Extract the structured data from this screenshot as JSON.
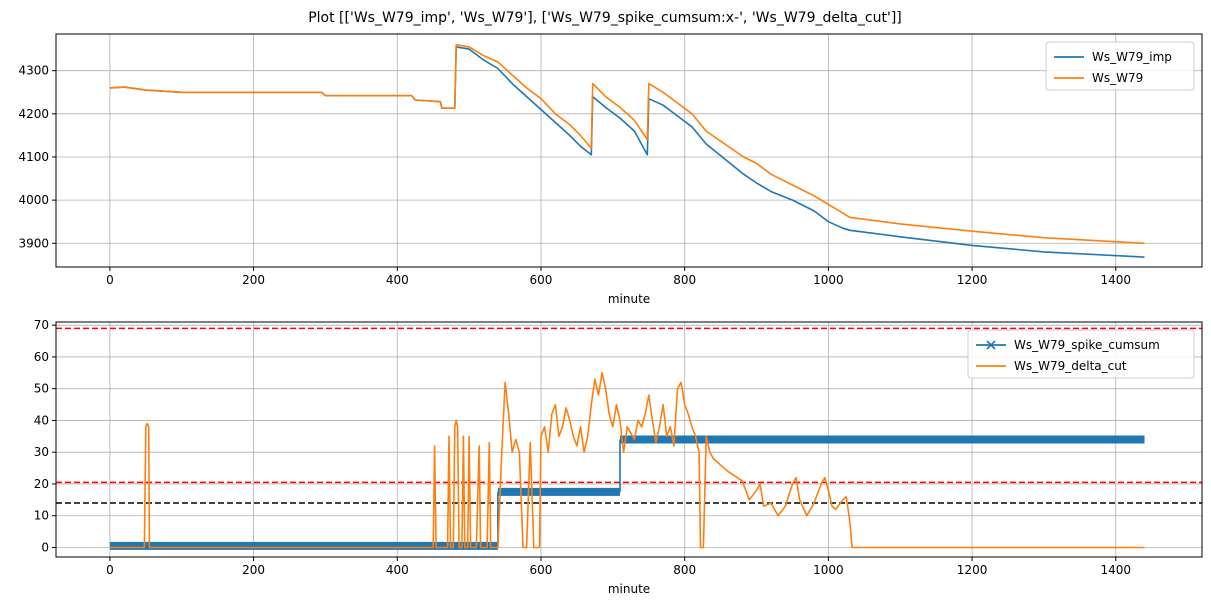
{
  "figure_title": "Plot [['Ws_W79_imp', 'Ws_W79'], ['Ws_W79_spike_cumsum:x-', 'Ws_W79_delta_cut']]",
  "chart_data": [
    {
      "type": "line",
      "title": "",
      "xlabel": "minute",
      "ylabel": "",
      "xlim": [
        -75,
        1520
      ],
      "ylim": [
        3845,
        4385
      ],
      "xticks": [
        0,
        200,
        400,
        600,
        800,
        1000,
        1200,
        1400
      ],
      "yticks": [
        3900,
        4000,
        4100,
        4200,
        4300
      ],
      "grid": true,
      "legend": "top-right",
      "series": [
        {
          "name": "Ws_W79_imp",
          "color": "#1f77b4",
          "points": [
            [
              0,
              4260
            ],
            [
              20,
              4262
            ],
            [
              50,
              4255
            ],
            [
              100,
              4250
            ],
            [
              200,
              4250
            ],
            [
              295,
              4250
            ],
            [
              300,
              4242
            ],
            [
              420,
              4242
            ],
            [
              425,
              4232
            ],
            [
              460,
              4228
            ],
            [
              462,
              4213
            ],
            [
              480,
              4213
            ],
            [
              482,
              4355
            ],
            [
              500,
              4350
            ],
            [
              520,
              4325
            ],
            [
              540,
              4305
            ],
            [
              560,
              4270
            ],
            [
              580,
              4240
            ],
            [
              600,
              4210
            ],
            [
              620,
              4180
            ],
            [
              640,
              4150
            ],
            [
              655,
              4125
            ],
            [
              670,
              4105
            ],
            [
              672,
              4240
            ],
            [
              690,
              4215
            ],
            [
              710,
              4190
            ],
            [
              730,
              4160
            ],
            [
              748,
              4105
            ],
            [
              750,
              4235
            ],
            [
              770,
              4220
            ],
            [
              790,
              4195
            ],
            [
              810,
              4170
            ],
            [
              830,
              4130
            ],
            [
              882,
              4060
            ],
            [
              900,
              4040
            ],
            [
              920,
              4020
            ],
            [
              950,
              4000
            ],
            [
              980,
              3975
            ],
            [
              1000,
              3950
            ],
            [
              1020,
              3935
            ],
            [
              1030,
              3930
            ],
            [
              1100,
              3915
            ],
            [
              1200,
              3895
            ],
            [
              1300,
              3880
            ],
            [
              1440,
              3868
            ]
          ]
        },
        {
          "name": "Ws_W79",
          "color": "#ff7f0e",
          "points": [
            [
              0,
              4260
            ],
            [
              20,
              4262
            ],
            [
              50,
              4255
            ],
            [
              100,
              4250
            ],
            [
              200,
              4250
            ],
            [
              295,
              4250
            ],
            [
              300,
              4242
            ],
            [
              420,
              4242
            ],
            [
              425,
              4232
            ],
            [
              460,
              4228
            ],
            [
              462,
              4213
            ],
            [
              480,
              4213
            ],
            [
              482,
              4360
            ],
            [
              500,
              4355
            ],
            [
              520,
              4335
            ],
            [
              540,
              4320
            ],
            [
              560,
              4290
            ],
            [
              580,
              4260
            ],
            [
              600,
              4235
            ],
            [
              620,
              4200
            ],
            [
              640,
              4175
            ],
            [
              655,
              4150
            ],
            [
              670,
              4120
            ],
            [
              672,
              4270
            ],
            [
              690,
              4240
            ],
            [
              710,
              4215
            ],
            [
              730,
              4185
            ],
            [
              748,
              4140
            ],
            [
              750,
              4270
            ],
            [
              770,
              4250
            ],
            [
              790,
              4225
            ],
            [
              810,
              4200
            ],
            [
              830,
              4160
            ],
            [
              882,
              4100
            ],
            [
              900,
              4085
            ],
            [
              920,
              4060
            ],
            [
              950,
              4035
            ],
            [
              980,
              4010
            ],
            [
              1000,
              3990
            ],
            [
              1020,
              3970
            ],
            [
              1030,
              3960
            ],
            [
              1100,
              3945
            ],
            [
              1200,
              3928
            ],
            [
              1300,
              3913
            ],
            [
              1440,
              3900
            ]
          ]
        }
      ]
    },
    {
      "type": "line",
      "title": "",
      "xlabel": "minute",
      "ylabel": "",
      "xlim": [
        -75,
        1520
      ],
      "ylim": [
        -3,
        71
      ],
      "xticks": [
        0,
        200,
        400,
        600,
        800,
        1000,
        1200,
        1400
      ],
      "yticks": [
        0,
        10,
        20,
        30,
        40,
        50,
        60,
        70
      ],
      "grid": true,
      "legend": "top-right",
      "hlines": [
        {
          "y": 69,
          "color": "#ff0000",
          "style": "dashed"
        },
        {
          "y": 20.5,
          "color": "#ff0000",
          "style": "dashed"
        },
        {
          "y": 14,
          "color": "#000000",
          "style": "dashed"
        }
      ],
      "series": [
        {
          "name": "Ws_W79_spike_cumsum",
          "color": "#1f77b4",
          "marker": "x",
          "segments": [
            {
              "x0": 0,
              "x1": 540,
              "y": 0.5
            },
            {
              "x0": 540,
              "x1": 710,
              "y": 17.5
            },
            {
              "x0": 710,
              "x1": 1440,
              "y": 34
            }
          ]
        },
        {
          "name": "Ws_W79_delta_cut",
          "color": "#ff7f0e",
          "points": [
            [
              0,
              0
            ],
            [
              48,
              0
            ],
            [
              50,
              38
            ],
            [
              52,
              39
            ],
            [
              54,
              38
            ],
            [
              55,
              0
            ],
            [
              450,
              0
            ],
            [
              452,
              32
            ],
            [
              454,
              0
            ],
            [
              470,
              0
            ],
            [
              472,
              35
            ],
            [
              474,
              0
            ],
            [
              478,
              0
            ],
            [
              480,
              38
            ],
            [
              482,
              40
            ],
            [
              484,
              38
            ],
            [
              486,
              0
            ],
            [
              490,
              0
            ],
            [
              492,
              35
            ],
            [
              494,
              0
            ],
            [
              498,
              0
            ],
            [
              500,
              35
            ],
            [
              502,
              0
            ],
            [
              510,
              0
            ],
            [
              514,
              32
            ],
            [
              516,
              0
            ],
            [
              525,
              0
            ],
            [
              528,
              33
            ],
            [
              530,
              0
            ],
            [
              540,
              0
            ],
            [
              545,
              28
            ],
            [
              550,
              52
            ],
            [
              555,
              42
            ],
            [
              560,
              30
            ],
            [
              565,
              34
            ],
            [
              570,
              30
            ],
            [
              575,
              0
            ],
            [
              580,
              0
            ],
            [
              585,
              33
            ],
            [
              590,
              0
            ],
            [
              598,
              0
            ],
            [
              600,
              35
            ],
            [
              605,
              38
            ],
            [
              610,
              30
            ],
            [
              615,
              42
            ],
            [
              620,
              45
            ],
            [
              625,
              35
            ],
            [
              630,
              38
            ],
            [
              635,
              44
            ],
            [
              640,
              40
            ],
            [
              645,
              35
            ],
            [
              650,
              32
            ],
            [
              655,
              38
            ],
            [
              660,
              30
            ],
            [
              665,
              35
            ],
            [
              670,
              45
            ],
            [
              675,
              53
            ],
            [
              680,
              48
            ],
            [
              685,
              55
            ],
            [
              690,
              50
            ],
            [
              695,
              42
            ],
            [
              700,
              38
            ],
            [
              705,
              45
            ],
            [
              710,
              40
            ],
            [
              715,
              30
            ],
            [
              720,
              38
            ],
            [
              725,
              36
            ],
            [
              730,
              34
            ],
            [
              735,
              40
            ],
            [
              740,
              38
            ],
            [
              745,
              42
            ],
            [
              750,
              48
            ],
            [
              755,
              40
            ],
            [
              760,
              33
            ],
            [
              765,
              38
            ],
            [
              770,
              45
            ],
            [
              775,
              35
            ],
            [
              780,
              38
            ],
            [
              785,
              32
            ],
            [
              790,
              50
            ],
            [
              795,
              52
            ],
            [
              800,
              45
            ],
            [
              805,
              42
            ],
            [
              810,
              38
            ],
            [
              815,
              35
            ],
            [
              820,
              30
            ],
            [
              822,
              0
            ],
            [
              826,
              0
            ],
            [
              830,
              35
            ],
            [
              835,
              30
            ],
            [
              840,
              28
            ],
            [
              860,
              24
            ],
            [
              880,
              21
            ],
            [
              890,
              15
            ],
            [
              900,
              18
            ],
            [
              905,
              20
            ],
            [
              910,
              13
            ],
            [
              920,
              14
            ],
            [
              930,
              10
            ],
            [
              940,
              13
            ],
            [
              950,
              20
            ],
            [
              955,
              22
            ],
            [
              960,
              15
            ],
            [
              970,
              10
            ],
            [
              980,
              14
            ],
            [
              990,
              20
            ],
            [
              995,
              22
            ],
            [
              1000,
              18
            ],
            [
              1005,
              13
            ],
            [
              1010,
              12
            ],
            [
              1020,
              15
            ],
            [
              1025,
              16
            ],
            [
              1030,
              8
            ],
            [
              1033,
              0
            ],
            [
              1440,
              0
            ]
          ]
        }
      ]
    }
  ]
}
